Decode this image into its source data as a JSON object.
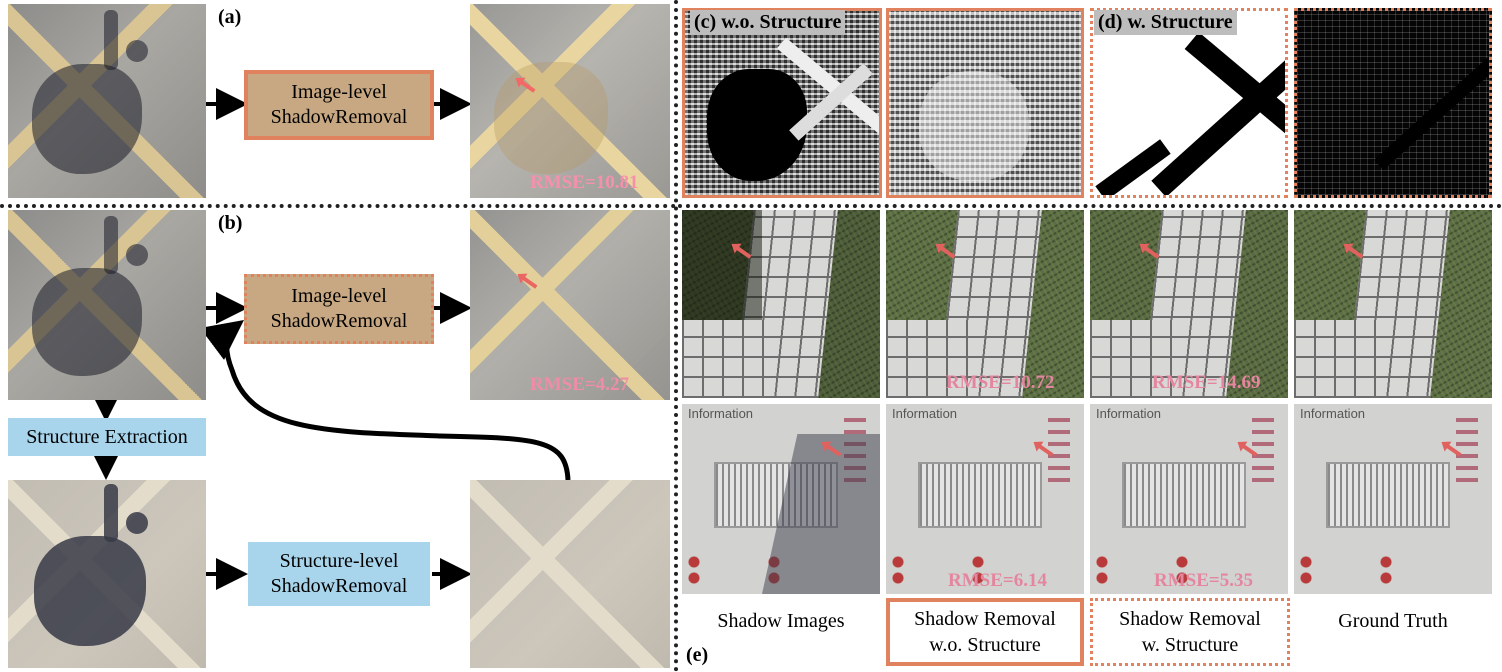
{
  "panel_tags": {
    "a": "(a)",
    "b": "(b)",
    "e": "(e)"
  },
  "map_labels": {
    "c": "(c) w.o. Structure",
    "d": "(d) w. Structure"
  },
  "boxes": {
    "image_level_a": [
      "Image-level",
      "ShadowRemoval"
    ],
    "image_level_b": [
      "Image-level",
      "ShadowRemoval"
    ],
    "structure_extraction": "Structure Extraction",
    "structure_level": [
      "Structure-level",
      "ShadowRemoval"
    ]
  },
  "rmse": {
    "a": "RMSE=10.81",
    "b": "RMSE=4.27",
    "row2_wo": "RMSE=10.72",
    "row2_w": "RMSE=14.69",
    "row3_wo": "RMSE=6.14",
    "row3_w": "RMSE=5.35"
  },
  "sign_text": "Information",
  "column_labels": {
    "shadow": [
      "Shadow Images"
    ],
    "wo": [
      "Shadow Removal",
      "w.o. Structure"
    ],
    "w": [
      "Shadow Removal",
      "w. Structure"
    ],
    "gt": [
      "Ground Truth"
    ]
  },
  "colors": {
    "accent_border": "#e0825e",
    "image_level_fill": "#c8a882",
    "structure_fill": "#a8d5ec",
    "rmse_text": "#e4869f"
  }
}
